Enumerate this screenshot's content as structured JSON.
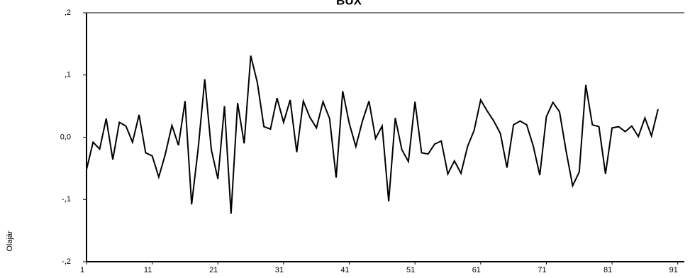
{
  "chart_data": {
    "type": "line",
    "title": "BUX",
    "y_label": "Olajár",
    "x": [
      1,
      2,
      3,
      4,
      5,
      6,
      7,
      8,
      9,
      10,
      11,
      12,
      13,
      14,
      15,
      16,
      17,
      18,
      19,
      20,
      21,
      22,
      23,
      24,
      25,
      26,
      27,
      28,
      29,
      30,
      31,
      32,
      33,
      34,
      35,
      36,
      37,
      38,
      39,
      40,
      41,
      42,
      43,
      44,
      45,
      46,
      47,
      48,
      49,
      50,
      51,
      52,
      53,
      54,
      55,
      56,
      57,
      58,
      59,
      60,
      61,
      62,
      63,
      64,
      65,
      66,
      67,
      68,
      69,
      70,
      71,
      72,
      73,
      74,
      75,
      76,
      77,
      78,
      79,
      80,
      81,
      82,
      83,
      84,
      85,
      86,
      87,
      88
    ],
    "series": [
      {
        "name": "BUX",
        "color": "#000000",
        "values": [
          -0.052,
          -0.008,
          -0.019,
          0.03,
          -0.036,
          0.024,
          0.018,
          -0.008,
          0.036,
          -0.025,
          -0.03,
          -0.064,
          -0.027,
          0.019,
          -0.013,
          0.058,
          -0.108,
          -0.018,
          0.093,
          -0.02,
          -0.067,
          0.05,
          -0.123,
          0.055,
          -0.01,
          0.131,
          0.088,
          0.017,
          0.013,
          0.063,
          0.024,
          0.06,
          -0.024,
          0.058,
          0.032,
          0.015,
          0.057,
          0.03,
          -0.065,
          0.074,
          0.022,
          -0.015,
          0.026,
          0.058,
          -0.002,
          0.018,
          -0.103,
          0.031,
          -0.02,
          -0.039,
          0.057,
          -0.025,
          -0.027,
          -0.011,
          -0.006,
          -0.059,
          -0.038,
          -0.058,
          -0.015,
          0.011,
          0.06,
          0.042,
          0.026,
          0.006,
          -0.049,
          0.02,
          0.026,
          0.02,
          -0.014,
          -0.061,
          0.033,
          0.056,
          0.041,
          -0.022,
          -0.078,
          -0.056,
          0.084,
          0.02,
          0.017,
          -0.059,
          0.015,
          0.017,
          0.009,
          0.018,
          0.001,
          0.031,
          0.002,
          0.045
        ]
      }
    ],
    "xlim": [
      1,
      92
    ],
    "xticks": [
      1,
      11,
      21,
      31,
      41,
      51,
      61,
      71,
      81,
      91
    ],
    "ylim": [
      -0.2,
      0.2
    ],
    "yticks": [
      {
        "value": -0.2,
        "label": "-,2"
      },
      {
        "value": -0.1,
        "label": "-,1"
      },
      {
        "value": 0,
        "label": "0,0"
      },
      {
        "value": 0.1,
        "label": ",1"
      },
      {
        "value": 0.2,
        "label": ",2"
      }
    ]
  }
}
